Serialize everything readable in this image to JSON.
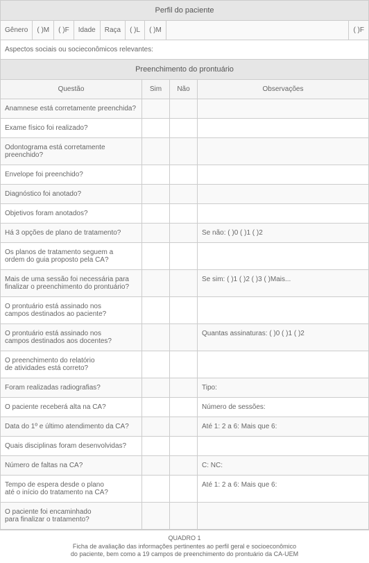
{
  "profile": {
    "section_title": "Perfil do paciente",
    "gender_label": "Gênero",
    "gender_m": "(   )M",
    "gender_f": "(   )F",
    "age_label": "Idade",
    "race_label": "Raça",
    "race_l": "(   )L",
    "race_m": "(   )M",
    "race_f": "(   )F",
    "aspects_label": "Aspectos sociais ou socieconômicos relevantes:"
  },
  "record": {
    "section_title": "Preenchimento do prontuário",
    "col_question": "Questão",
    "col_yes": "Sim",
    "col_no": "Não",
    "col_obs": "Observações",
    "rows": [
      {
        "q": "Anamnese está corretamente preenchida?",
        "o": ""
      },
      {
        "q": "Exame físico foi realizado?",
        "o": ""
      },
      {
        "q": "Odontograma está corretamente preenchido?",
        "o": ""
      },
      {
        "q": "Envelope foi preenchido?",
        "o": ""
      },
      {
        "q": "Diagnóstico foi anotado?",
        "o": ""
      },
      {
        "q": "Objetivos foram anotados?",
        "o": ""
      },
      {
        "q": "Há 3 opções de plano de tratamento?",
        "o": "Se não: (   )0  (   )1  (   )2"
      },
      {
        "q": "Os planos de tratamento seguem a\nordem do guia proposto pela CA?",
        "o": ""
      },
      {
        "q": "Mais de uma sessão foi necessária para\nfinalizar o preenchimento do prontuário?",
        "o": "Se sim: (   )1  (   )2  (   )3  (   )Mais..."
      },
      {
        "q": "O prontuário está assinado nos\ncampos destinados ao paciente?",
        "o": ""
      },
      {
        "q": "O prontuário está assinado nos\ncampos destinados aos docentes?",
        "o": "Quantas assinaturas: (   )0  (   )1  (   )2"
      },
      {
        "q": "O preenchimento do relatório\nde atividades está correto?",
        "o": ""
      },
      {
        "q": "Foram realizadas radiografias?",
        "o": "Tipo:"
      },
      {
        "q": "O paciente receberá alta na CA?",
        "o": "Número de sessões:"
      },
      {
        "q": "Data do 1º e último atendimento da CA?",
        "o": "Até 1:               2 a 6:               Mais que 6:"
      },
      {
        "q": "Quais disciplinas foram desenvolvidas?",
        "o": ""
      },
      {
        "q": "Número de faltas na CA?",
        "o": "C:                       NC:"
      },
      {
        "q": "Tempo de espera desde o plano\naté o início do tratamento na CA?",
        "o": "Até 1:               2 a 6:               Mais que 6:"
      },
      {
        "q": "O paciente foi encaminhado\npara finalizar o tratamento?",
        "o": ""
      }
    ]
  },
  "caption": {
    "title": "QUADRO 1",
    "line1": "Ficha de avaliação das informações pertinentes ao perfil geral e socioeconômico",
    "line2": "do paciente, bem como a 19 campos de preenchimento do prontuário da CA-UEM"
  },
  "style": {
    "header_bg": "#e6e6e6",
    "row_alt_bg": "#f9f9f9",
    "border_color": "#cccccc",
    "text_color": "#666666",
    "fontsize_body": 10,
    "fontsize_header": 11,
    "fontsize_caption": 9
  }
}
